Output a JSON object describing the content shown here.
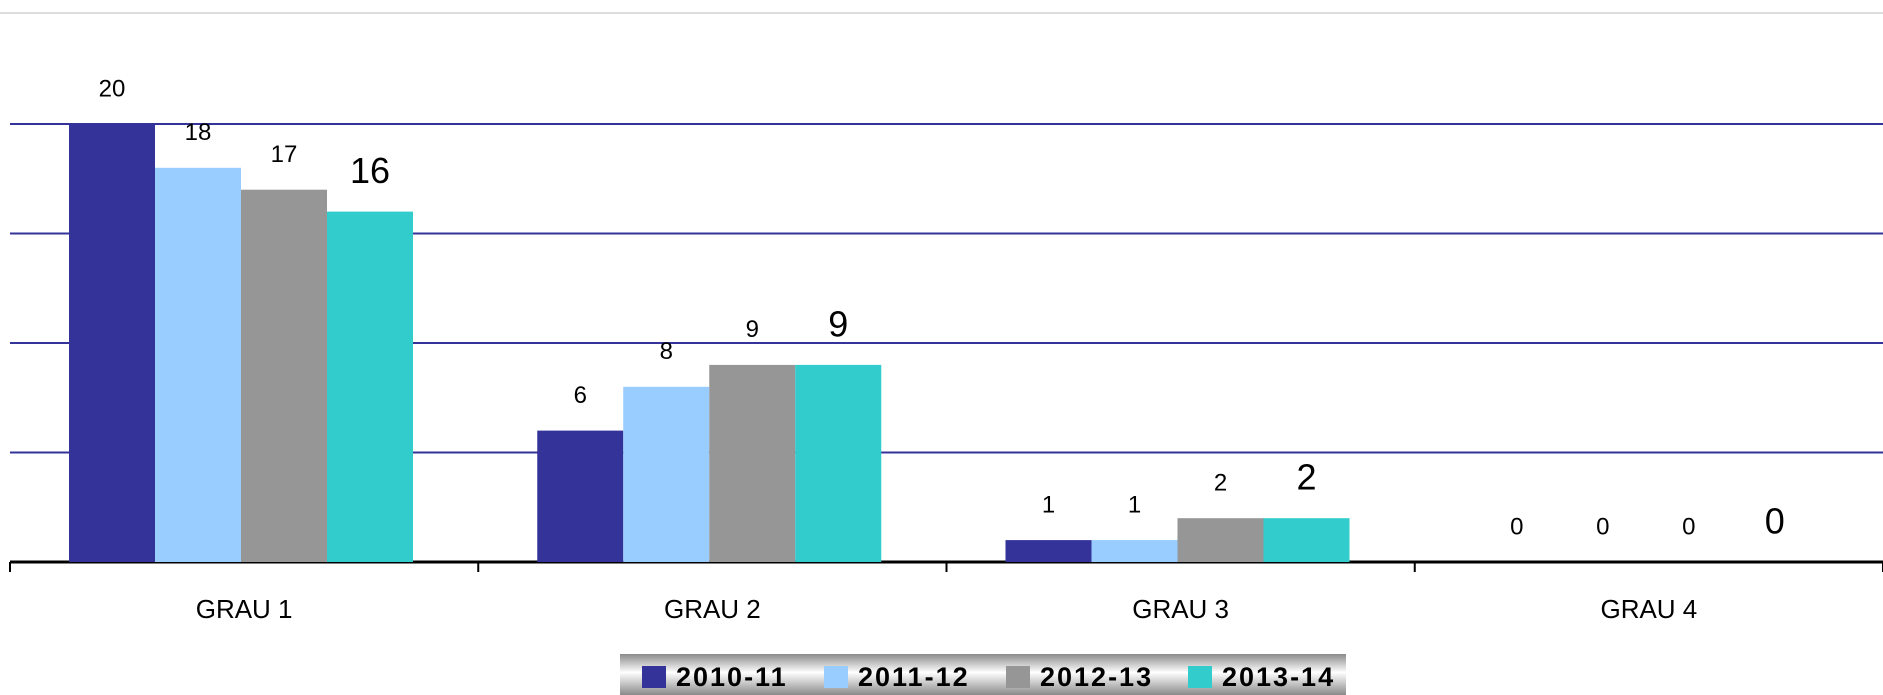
{
  "chart_data": {
    "type": "bar",
    "categories": [
      "GRAU 1",
      "GRAU 2",
      "GRAU 3",
      "GRAU 4"
    ],
    "series": [
      {
        "name": "2010-11",
        "color": "#333399",
        "values": [
          20,
          6,
          1,
          0
        ]
      },
      {
        "name": "2011-12",
        "color": "#99ccff",
        "values": [
          18,
          8,
          1,
          0
        ]
      },
      {
        "name": "2012-13",
        "color": "#969696",
        "values": [
          17,
          9,
          2,
          0
        ]
      },
      {
        "name": "2013-14",
        "color": "#33cccc",
        "values": [
          16,
          9,
          2,
          0
        ]
      }
    ],
    "ylim": [
      0,
      20
    ],
    "yticks": [
      0,
      5,
      10,
      15,
      20
    ],
    "grid": true,
    "legend": "bottom"
  }
}
